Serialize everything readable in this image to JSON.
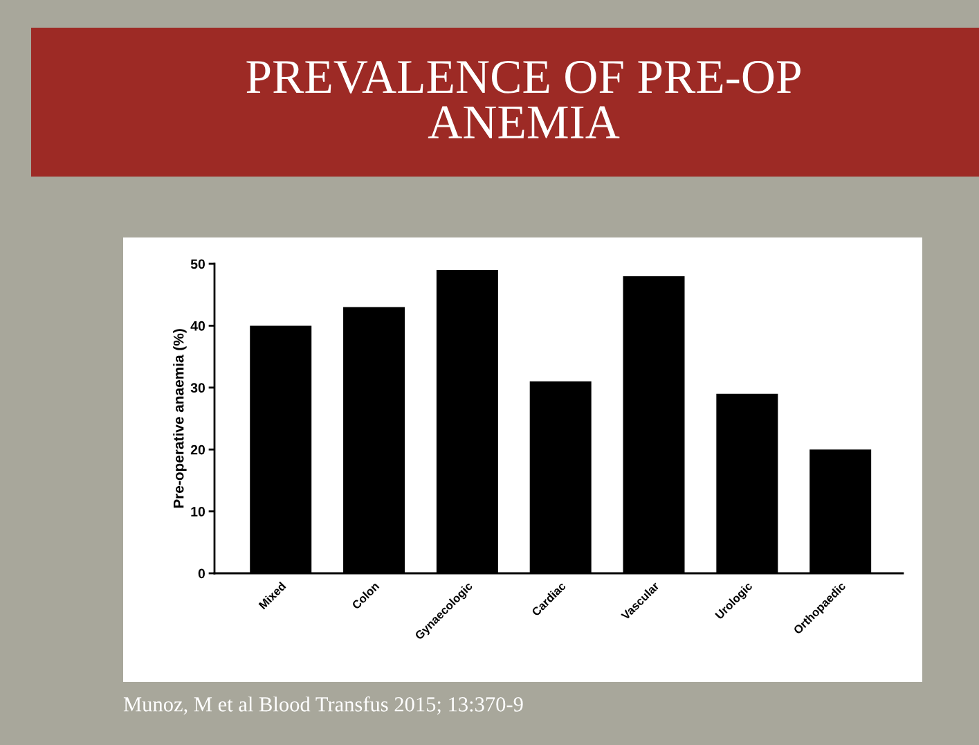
{
  "chart_data": {
    "type": "bar",
    "title": "PREVALENCE OF PRE-OP\nANEMIA",
    "ylabel": "Pre-operative anaemia (%)",
    "categories": [
      "Mixed",
      "Colon",
      "Gynaecologic",
      "Cardiac",
      "Vascular",
      "Urologic",
      "Orthopaedic"
    ],
    "values": [
      40,
      43,
      49,
      31,
      48,
      29,
      20
    ],
    "color": "#000000",
    "ylim": [
      0,
      50
    ],
    "yticks": [
      0,
      10,
      20,
      30,
      40,
      50
    ],
    "annotations": [
      "Munoz, M et al Blood Transfus 2015; 13:370-9"
    ]
  }
}
